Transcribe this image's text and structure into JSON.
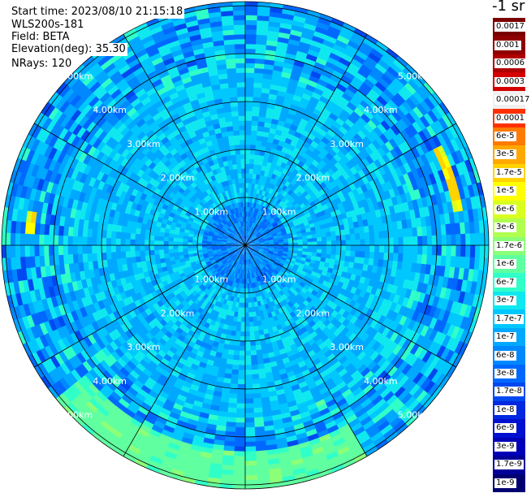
{
  "header": {
    "start_time": "Start time: 2023/08/10 21:15:18",
    "instrument": "WLS200s-181",
    "field": "Field: BETA",
    "elevation": "Elevation(deg): 35.30",
    "nrays": "NRays: 120"
  },
  "colorbar": {
    "unit": "-1 sr",
    "labels": [
      "0.0017",
      "0.001",
      "0.0006",
      "0.0003",
      "0.00017",
      "0.0001",
      "6e-5",
      "3e-5",
      "1.7e-5",
      "1e-5",
      "6e-6",
      "3e-6",
      "1.7e-6",
      "1e-6",
      "6e-7",
      "3e-7",
      "1.7e-7",
      "1e-7",
      "6e-8",
      "3e-8",
      "1.7e-8",
      "1e-8",
      "6e-9",
      "3e-9",
      "1.7e-9",
      "1e-9"
    ],
    "colors": [
      "#7a0000",
      "#8f0000",
      "#b00000",
      "#d40000",
      "#f0f0f0",
      "#ff3000",
      "#ff7a00",
      "#ffa800",
      "#ffd200",
      "#ffff00",
      "#d9ff20",
      "#b0ff50",
      "#8cff78",
      "#60ffa0",
      "#30ffc8",
      "#10e8f0",
      "#00c8ff",
      "#00a8ff",
      "#0088ff",
      "#0068ff",
      "#0048f0",
      "#0028e0",
      "#0010d0",
      "#0000b8",
      "#000098",
      "#000070"
    ]
  },
  "chart_data": {
    "type": "heatmap",
    "projection": "polar-ppi",
    "field": "BETA",
    "elevation_deg": 35.3,
    "nrays": 120,
    "range_rings_km": [
      1,
      2,
      3,
      4,
      5
    ],
    "range_labels": [
      "1.00km",
      "2.00km",
      "3.00km",
      "4.00km",
      "5.00km"
    ],
    "spokes_deg": [
      0,
      30,
      60,
      90,
      120,
      150,
      180,
      210,
      240,
      270,
      300,
      330
    ],
    "max_range_km": 5.2,
    "color_scale": "log",
    "value_range": [
      1e-09,
      0.0017
    ],
    "typical_value": 1.7e-07,
    "enhanced_regions": [
      {
        "azimuth_deg": [
          150,
          230
        ],
        "range_km": [
          4.3,
          5.0
        ],
        "value": 1e-06
      },
      {
        "azimuth_deg": [
          63,
          78
        ],
        "range_km": [
          4.4,
          4.6
        ],
        "value": 1e-05
      },
      {
        "azimuth_deg": [
          273,
          278
        ],
        "range_km": [
          4.4,
          4.6
        ],
        "value": 1e-05
      }
    ]
  }
}
